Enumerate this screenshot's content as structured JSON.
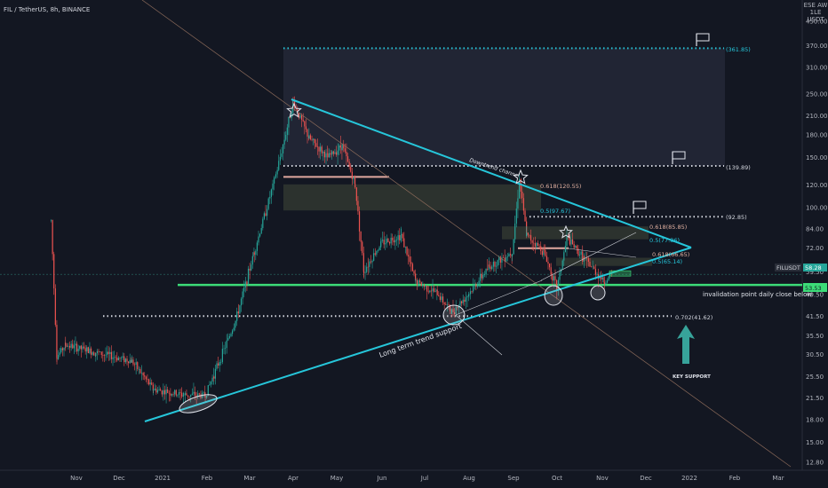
{
  "header": {
    "symbol": "FIL / TetherUS, 8h, BINANCE"
  },
  "price_scale": {
    "currency_lines": [
      "ESE AW",
      "1LE",
      "USDT"
    ]
  },
  "colors": {
    "accent": "#26c6da",
    "support": "#3cdc78",
    "up": "#26a69a",
    "down": "#ef5350",
    "bg": "#131722"
  },
  "current_price": {
    "symbol": "FILUSDT",
    "price_label": "58.28",
    "support_label": "53.53"
  },
  "levels": [
    {
      "label": "(361.85)"
    },
    {
      "label": "(139.89)"
    },
    {
      "label": "(92.85)"
    },
    {
      "label": "0.618(120.55)"
    },
    {
      "label": "0.5(97.67)"
    },
    {
      "label": "0.618(85.85)"
    },
    {
      "label": "0.5(77.36)"
    },
    {
      "label": "0.618(66.65)"
    },
    {
      "label": "0.5(65.14)"
    },
    {
      "label": "0.702(41.62)"
    }
  ],
  "annotations": {
    "channel": "Downtrend channel",
    "trend": "Long term trend support",
    "invalidation": "invalidation point daily close below",
    "key_support": "KEY SUPPORT"
  },
  "chart_data": {
    "type": "candlestick",
    "title": "FIL / TetherUS, 8h, BINANCE",
    "y_scale": "log",
    "ylim": [
      11.5,
      560
    ],
    "y_ticks": [
      12.8,
      15.0,
      18.0,
      21.5,
      25.5,
      30.5,
      35.5,
      41.5,
      49.5,
      59.5,
      72.0,
      84.0,
      100.0,
      120.0,
      150.0,
      180.0,
      210.0,
      250.0,
      310.0,
      370.0,
      450.0
    ],
    "x_ticks": [
      "Nov",
      "Dec",
      "2021",
      "Feb",
      "Mar",
      "Apr",
      "May",
      "Jun",
      "Jul",
      "Aug",
      "Sep",
      "Oct",
      "Nov",
      "Dec",
      "2022",
      "Feb",
      "Mar"
    ],
    "price_path": [
      {
        "x": "Oct 15 2020",
        "y": 90
      },
      {
        "x": "Oct 19 2020",
        "y": 30
      },
      {
        "x": "Oct 25 2020",
        "y": 33
      },
      {
        "x": "Nov 15 2020",
        "y": 31
      },
      {
        "x": "Dec 10 2020",
        "y": 29
      },
      {
        "x": "Dec 25 2020",
        "y": 23
      },
      {
        "x": "Jan 15 2021",
        "y": 22
      },
      {
        "x": "Jan 30 2021",
        "y": 22
      },
      {
        "x": "Feb 5 2021",
        "y": 26
      },
      {
        "x": "Feb 20 2021",
        "y": 40
      },
      {
        "x": "Mar 5 2021",
        "y": 70
      },
      {
        "x": "Mar 20 2021",
        "y": 130
      },
      {
        "x": "Apr 1 2021",
        "y": 235
      },
      {
        "x": "Apr 12 2021",
        "y": 175
      },
      {
        "x": "Apr 25 2021",
        "y": 150
      },
      {
        "x": "May 5 2021",
        "y": 165
      },
      {
        "x": "May 14 2021",
        "y": 120
      },
      {
        "x": "May 20 2021",
        "y": 60
      },
      {
        "x": "Jun 1 2021",
        "y": 75
      },
      {
        "x": "Jun 15 2021",
        "y": 80
      },
      {
        "x": "Jun 25 2021",
        "y": 55
      },
      {
        "x": "Jul 10 2021",
        "y": 50
      },
      {
        "x": "Jul 20 2021",
        "y": 43
      },
      {
        "x": "Aug 1 2021",
        "y": 50
      },
      {
        "x": "Aug 15 2021",
        "y": 62
      },
      {
        "x": "Aug 31 2021",
        "y": 70
      },
      {
        "x": "Sep 5 2021",
        "y": 125
      },
      {
        "x": "Sep 10 2021",
        "y": 80
      },
      {
        "x": "Sep 22 2021",
        "y": 70
      },
      {
        "x": "Oct 1 2021",
        "y": 52
      },
      {
        "x": "Oct 8 2021",
        "y": 78
      },
      {
        "x": "Oct 20 2021",
        "y": 66
      },
      {
        "x": "Nov 3 2021",
        "y": 55
      },
      {
        "x": "Nov 8 2021",
        "y": 58
      }
    ],
    "horizontal_levels": [
      361.85,
      139.89,
      92.85,
      41.62,
      53.53
    ],
    "fib_levels": [
      {
        "label": "0.618",
        "value": 120.55
      },
      {
        "label": "0.5",
        "value": 97.67
      },
      {
        "label": "0.618",
        "value": 85.85
      },
      {
        "label": "0.5",
        "value": 77.36
      },
      {
        "label": "0.618",
        "value": 66.65
      },
      {
        "label": "0.5",
        "value": 65.14
      },
      {
        "label": "0.702",
        "value": 41.62
      }
    ],
    "current_price": 58.28,
    "support_price": 53.53
  }
}
